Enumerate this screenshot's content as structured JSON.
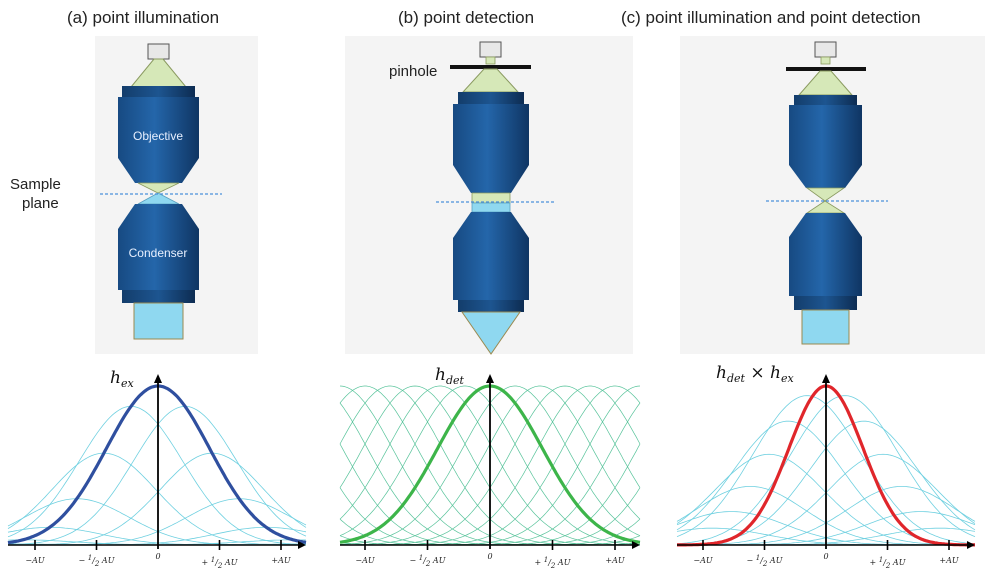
{
  "panels": [
    {
      "id": "a",
      "title": "(a) point illumination",
      "objective_label": "Objective",
      "condenser_label": "Condenser",
      "curve_label": "h_ex",
      "curve_color": "#2f4f9f",
      "family_color": "#6fd0e0"
    },
    {
      "id": "b",
      "title": "(b) point detection",
      "pinhole_label": "pinhole",
      "curve_label": "h_det",
      "curve_color": "#3db54a",
      "family_color": "#57c39a"
    },
    {
      "id": "c",
      "title": "(c) point illumination and point detection",
      "curve_label": "h_det × h_ex",
      "curve_color": "#e0262b",
      "family_color": "#6fd0e0"
    }
  ],
  "sample_plane_label_line1": "Sample",
  "sample_plane_label_line2": "plane",
  "axis_ticks": [
    "−AU",
    "−½AU",
    "0",
    "+½AU",
    "+AU"
  ],
  "tick_text": {
    "minus_au": "−AU",
    "minus_half": "−",
    "half_num": "1",
    "half_den": "2",
    "au": "AU",
    "zero": "0",
    "plus_half": "+",
    "plus_au": "+AU"
  },
  "math": {
    "h": "h",
    "ex": "ex",
    "det": "det",
    "times": " × "
  },
  "colors": {
    "lens_blue": "#1f5a9a",
    "lens_dark": "#123a66",
    "cone_green": "#d6e8b8",
    "light_blue": "#8fd8f0",
    "sample_line": "#4a90d9"
  }
}
